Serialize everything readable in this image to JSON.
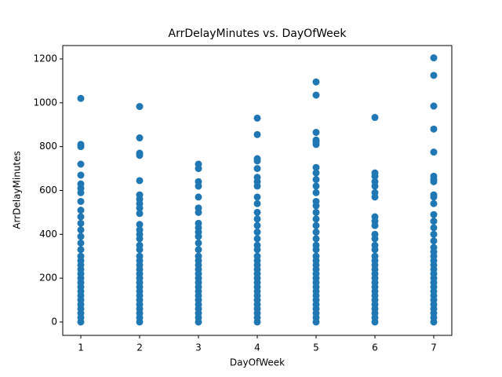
{
  "chart_data": {
    "type": "scatter",
    "title": "ArrDelayMinutes vs. DayOfWeek",
    "x_label": "DayOfWeek",
    "y_label": "ArrDelayMinutes",
    "color": "#1f77b4",
    "x": [
      1,
      1,
      1,
      1,
      1,
      1,
      1,
      1,
      1,
      1,
      1,
      1,
      1,
      1,
      1,
      1,
      1,
      1,
      1,
      1,
      1,
      1,
      1,
      1,
      1,
      1,
      1,
      1,
      1,
      1,
      1,
      1,
      2,
      2,
      2,
      2,
      2,
      2,
      2,
      2,
      2,
      2,
      2,
      2,
      2,
      2,
      2,
      2,
      2,
      2,
      2,
      2,
      2,
      2,
      2,
      2,
      2,
      2,
      2,
      2,
      2,
      2,
      2,
      2,
      3,
      3,
      3,
      3,
      3,
      3,
      3,
      3,
      3,
      3,
      3,
      3,
      3,
      3,
      3,
      3,
      3,
      3,
      3,
      3,
      3,
      3,
      3,
      3,
      3,
      3,
      3,
      3,
      3,
      4,
      4,
      4,
      4,
      4,
      4,
      4,
      4,
      4,
      4,
      4,
      4,
      4,
      4,
      4,
      4,
      4,
      4,
      4,
      4,
      4,
      4,
      4,
      4,
      4,
      4,
      4,
      4,
      4,
      4,
      4,
      4,
      4,
      5,
      5,
      5,
      5,
      5,
      5,
      5,
      5,
      5,
      5,
      5,
      5,
      5,
      5,
      5,
      5,
      5,
      5,
      5,
      5,
      5,
      5,
      5,
      5,
      5,
      5,
      5,
      5,
      5,
      5,
      5,
      5,
      5,
      5,
      5,
      5,
      6,
      6,
      6,
      6,
      6,
      6,
      6,
      6,
      6,
      6,
      6,
      6,
      6,
      6,
      6,
      6,
      6,
      6,
      6,
      6,
      6,
      6,
      6,
      6,
      6,
      6,
      6,
      6,
      6,
      6,
      7,
      7,
      7,
      7,
      7,
      7,
      7,
      7,
      7,
      7,
      7,
      7,
      7,
      7,
      7,
      7,
      7,
      7,
      7,
      7,
      7,
      7,
      7,
      7,
      7,
      7,
      7,
      7,
      7,
      7,
      7,
      7,
      7,
      7
    ],
    "values": [
      0,
      20,
      40,
      60,
      80,
      100,
      120,
      140,
      160,
      180,
      200,
      220,
      240,
      260,
      280,
      300,
      1020,
      810,
      800,
      720,
      670,
      630,
      610,
      590,
      550,
      510,
      480,
      450,
      420,
      390,
      360,
      330,
      0,
      20,
      40,
      60,
      80,
      100,
      120,
      140,
      160,
      180,
      200,
      220,
      240,
      260,
      280,
      300,
      983,
      840,
      770,
      760,
      645,
      580,
      560,
      540,
      520,
      495,
      445,
      420,
      400,
      380,
      350,
      330,
      0,
      20,
      40,
      60,
      80,
      100,
      120,
      140,
      160,
      180,
      200,
      220,
      240,
      260,
      280,
      300,
      720,
      700,
      640,
      620,
      570,
      520,
      500,
      450,
      430,
      410,
      390,
      360,
      330,
      0,
      20,
      40,
      60,
      80,
      100,
      120,
      140,
      160,
      180,
      200,
      220,
      240,
      260,
      280,
      300,
      930,
      855,
      745,
      735,
      700,
      660,
      640,
      620,
      570,
      540,
      500,
      470,
      440,
      410,
      380,
      350,
      330,
      0,
      20,
      40,
      60,
      80,
      100,
      120,
      140,
      160,
      180,
      200,
      220,
      240,
      260,
      280,
      300,
      1095,
      1035,
      865,
      830,
      820,
      810,
      705,
      680,
      650,
      620,
      590,
      550,
      530,
      500,
      470,
      440,
      410,
      380,
      350,
      330,
      0,
      20,
      40,
      60,
      80,
      100,
      120,
      140,
      160,
      180,
      200,
      220,
      240,
      260,
      280,
      300,
      933,
      680,
      665,
      640,
      620,
      590,
      570,
      480,
      460,
      440,
      400,
      380,
      350,
      330,
      0,
      20,
      40,
      60,
      80,
      100,
      120,
      140,
      160,
      180,
      200,
      220,
      240,
      260,
      280,
      300,
      1205,
      1125,
      985,
      880,
      775,
      665,
      650,
      640,
      580,
      570,
      540,
      490,
      460,
      430,
      400,
      370,
      340,
      320
    ],
    "xlim": [
      0.693,
      7.307
    ],
    "ylim": [
      -61,
      1261
    ],
    "xticks": [
      1,
      2,
      3,
      4,
      5,
      6,
      7
    ],
    "yticks": [
      0,
      200,
      400,
      600,
      800,
      1000,
      1200
    ]
  }
}
